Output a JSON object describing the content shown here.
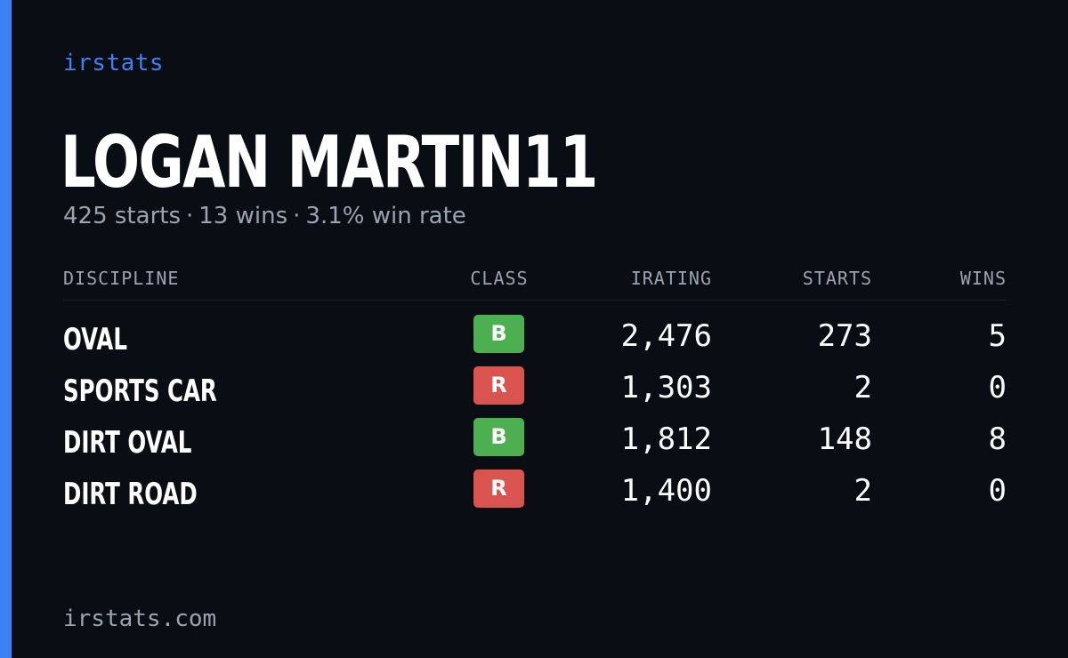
{
  "brand": "irstats",
  "player": {
    "name": "LOGAN MARTIN11",
    "starts_text": "425 starts",
    "wins_text": "13 wins",
    "win_rate_text": "3.1% win rate",
    "separator": "·"
  },
  "table": {
    "headers": {
      "discipline": "DISCIPLINE",
      "class": "CLASS",
      "irating": "IRATING",
      "starts": "STARTS",
      "wins": "WINS"
    },
    "rows": [
      {
        "discipline": "OVAL",
        "class": "B",
        "class_color": "#4caf50",
        "irating": "2,476",
        "starts": "273",
        "wins": "5"
      },
      {
        "discipline": "SPORTS CAR",
        "class": "R",
        "class_color": "#d9534f",
        "irating": "1,303",
        "starts": "2",
        "wins": "0"
      },
      {
        "discipline": "DIRT OVAL",
        "class": "B",
        "class_color": "#4caf50",
        "irating": "1,812",
        "starts": "148",
        "wins": "8"
      },
      {
        "discipline": "DIRT ROAD",
        "class": "R",
        "class_color": "#d9534f",
        "irating": "1,400",
        "starts": "2",
        "wins": "0"
      }
    ]
  },
  "footer": "irstats.com",
  "colors": {
    "background": "#0a0d14",
    "accent": "#3b82f6",
    "muted_text": "#9aa3b2",
    "class_b": "#4caf50",
    "class_r": "#d9534f"
  }
}
